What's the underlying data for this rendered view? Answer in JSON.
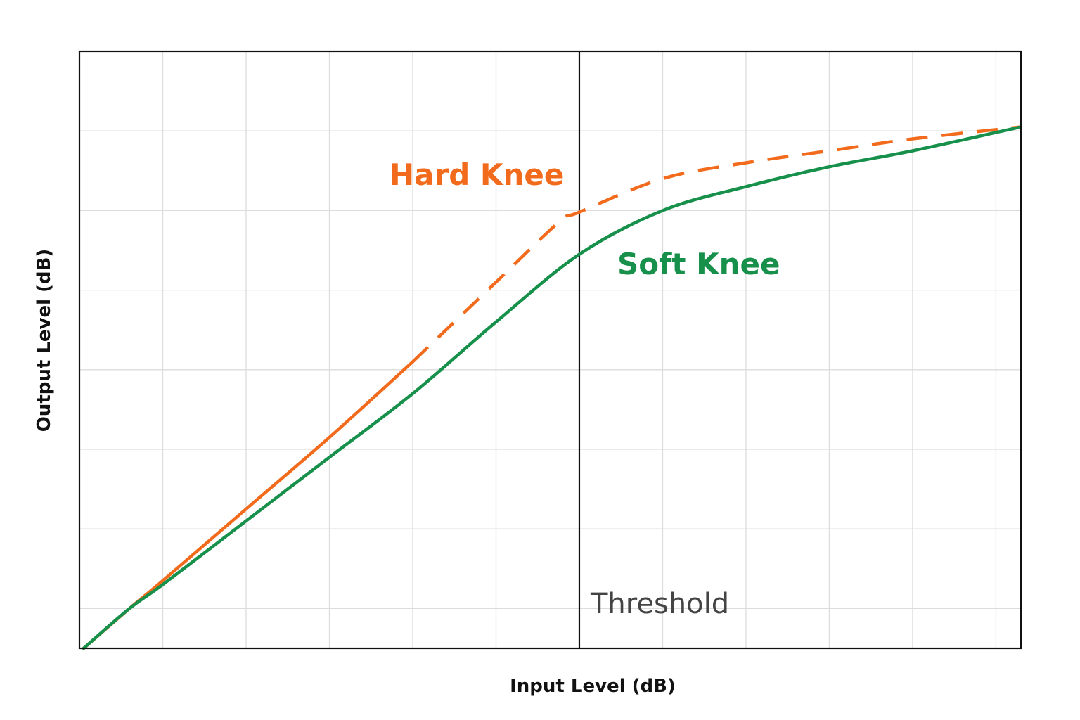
{
  "chart_data": {
    "type": "line",
    "title": "",
    "xlabel": "Input Level (dB)",
    "ylabel": "Output Level (dB)",
    "xlim": [
      0,
      11.3
    ],
    "ylim": [
      0,
      7.5
    ],
    "grid": true,
    "x_grid": [
      1,
      2,
      3,
      4,
      5,
      6,
      7,
      8,
      9,
      10,
      11
    ],
    "y_grid": [
      0.5,
      1.5,
      2.5,
      3.5,
      4.5,
      5.5,
      6.5
    ],
    "threshold": {
      "x": 6,
      "label": "Threshold"
    },
    "series": [
      {
        "name": "Hard Knee",
        "color": "#F26B1D",
        "style": "solid-then-dashed",
        "points": [
          [
            0.05,
            0
          ],
          [
            0.6,
            0.5
          ],
          [
            1,
            0.85
          ],
          [
            2,
            1.75
          ],
          [
            3,
            2.65
          ],
          [
            4,
            3.6
          ],
          [
            5,
            4.6
          ],
          [
            5.75,
            5.35
          ],
          [
            6,
            5.48
          ],
          [
            7,
            5.9
          ],
          [
            8,
            6.1
          ],
          [
            9,
            6.25
          ],
          [
            10,
            6.4
          ],
          [
            11.3,
            6.55
          ]
        ]
      },
      {
        "name": "Soft Knee",
        "color": "#16904A",
        "style": "solid",
        "points": [
          [
            0.05,
            0
          ],
          [
            0.6,
            0.5
          ],
          [
            1,
            0.8
          ],
          [
            2,
            1.6
          ],
          [
            3,
            2.4
          ],
          [
            4,
            3.2
          ],
          [
            5,
            4.1
          ],
          [
            6,
            4.95
          ],
          [
            7,
            5.5
          ],
          [
            8,
            5.8
          ],
          [
            9,
            6.05
          ],
          [
            10,
            6.25
          ],
          [
            11.3,
            6.55
          ]
        ]
      }
    ]
  }
}
